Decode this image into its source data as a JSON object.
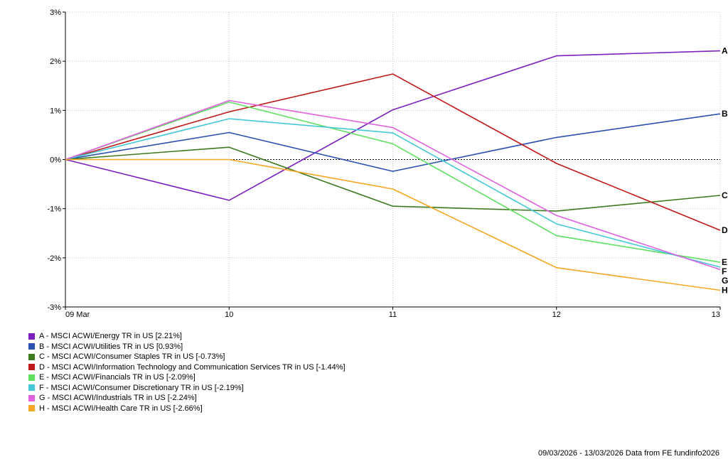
{
  "chart_data": {
    "type": "line",
    "categories": [
      "09 Mar",
      "10",
      "11",
      "12",
      "13"
    ],
    "y_ticks": [
      "3%",
      "2%",
      "1%",
      "0%",
      "-1%",
      "-2%",
      "-3%"
    ],
    "ylim": [
      -3,
      3
    ],
    "grid": true,
    "zero_line": "dotted",
    "legend_position": "bottom-left",
    "series": [
      {
        "letter": "A",
        "name": "A - MSCI ACWI/Energy TR in US [2.21%]",
        "color": "#7b1fbf",
        "values": [
          0,
          -0.83,
          1.01,
          2.11,
          2.21
        ]
      },
      {
        "letter": "B",
        "name": "B - MSCI ACWI/Utilities TR in US [0.93%]",
        "color": "#2b50b0",
        "values": [
          0,
          0.55,
          -0.24,
          0.45,
          0.93
        ]
      },
      {
        "letter": "C",
        "name": "C - MSCI ACWI/Consumer Staples TR in US [-0.73%]",
        "color": "#3d7a1e",
        "values": [
          0,
          0.25,
          -0.95,
          -1.05,
          -0.73
        ]
      },
      {
        "letter": "D",
        "name": "D - MSCI ACWI/Information Technology and Communication Services TR in US [-1.44%]",
        "color": "#c01818",
        "values": [
          0,
          0.97,
          1.74,
          -0.08,
          -1.44
        ]
      },
      {
        "letter": "E",
        "name": "E - MSCI ACWI/Financials TR in US [-2.09%]",
        "color": "#5fe060",
        "values": [
          0,
          1.17,
          0.32,
          -1.55,
          -2.09
        ]
      },
      {
        "letter": "F",
        "name": "F - MSCI ACWI/Consumer Discretionary TR in US [-2.19%]",
        "color": "#44c8d8",
        "values": [
          0,
          0.83,
          0.54,
          -1.31,
          -2.19
        ]
      },
      {
        "letter": "G",
        "name": "G - MSCI ACWI/Industrials TR in US [-2.24%]",
        "color": "#e060e0",
        "values": [
          0,
          1.2,
          0.65,
          -1.14,
          -2.24
        ]
      },
      {
        "letter": "H",
        "name": "H - MSCI ACWI/Health Care TR in US [-2.66%]",
        "color": "#f5a623",
        "values": [
          0,
          0.0,
          -0.6,
          -2.2,
          -2.66
        ]
      }
    ]
  },
  "footer": "09/03/2026 - 13/03/2026 Data from FE fundinfo2026"
}
